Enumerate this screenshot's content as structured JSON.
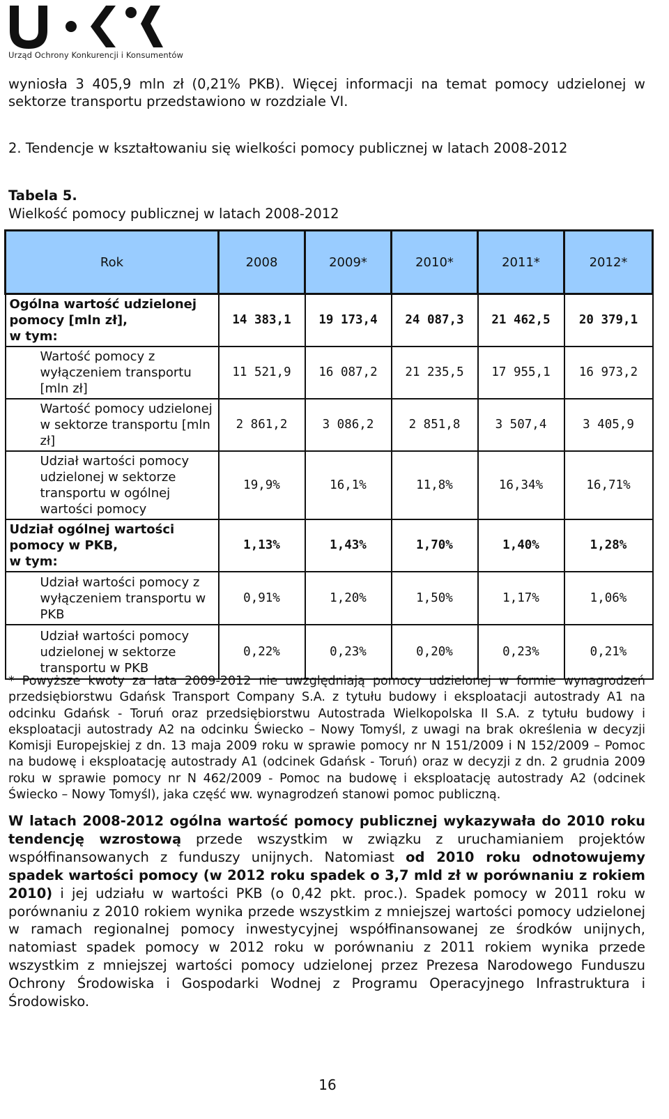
{
  "logo": {
    "letters": "U•K",
    "tagline": "Urząd Ochrony Konkurencji i Konsumentów"
  },
  "intro": "wyniosła 3 405,9 mln zł (0,21% PKB). Więcej informacji na temat pomocy udzielonej w sektorze transportu przedstawiono w rozdziale VI.",
  "section_heading": "2. Tendencje w kształtowaniu się wielkości pomocy publicznej w latach 2008-2012",
  "table": {
    "label": "Tabela 5.",
    "title": "Wielkość pomocy publicznej w latach 2008-2012",
    "header_colour": "#99ccff",
    "columns": [
      "Rok",
      "2008",
      "2009*",
      "2010*",
      "2011*",
      "2012*"
    ],
    "rows": [
      {
        "label": "Ogólna wartość udzielonej pomocy [mln zł],",
        "label2": "w tym:",
        "values": [
          "14 383,1",
          "19 173,4",
          "24 087,3",
          "21 462,5",
          "20 379,1"
        ]
      },
      {
        "label": "Wartość pomocy z wyłączeniem transportu [mln zł]",
        "values": [
          "11 521,9",
          "16 087,2",
          "21 235,5",
          "17 955,1",
          "16 973,2"
        ]
      },
      {
        "label": "Wartość pomocy udzielonej w sektorze transportu [mln zł]",
        "values": [
          "2 861,2",
          "3 086,2",
          "2 851,8",
          "3 507,4",
          "3 405,9"
        ]
      },
      {
        "label": "Udział wartości pomocy udzielonej w sektorze transportu w ogólnej wartości pomocy",
        "values": [
          "19,9%",
          "16,1%",
          "11,8%",
          "16,34%",
          "16,71%"
        ]
      },
      {
        "label": "Udział ogólnej wartości pomocy w PKB,",
        "label2": "w tym:",
        "values": [
          "1,13%",
          "1,43%",
          "1,70%",
          "1,40%",
          "1,28%"
        ]
      },
      {
        "label": "Udział wartości pomocy z wyłączeniem transportu w PKB",
        "values": [
          "0,91%",
          "1,20%",
          "1,50%",
          "1,17%",
          "1,06%"
        ]
      },
      {
        "label": "Udział wartości pomocy udzielonej w sektorze transportu w PKB",
        "values": [
          "0,22%",
          "0,23%",
          "0,20%",
          "0,23%",
          "0,21%"
        ]
      }
    ]
  },
  "footnote": "* Powyższe kwoty za lata 2009-2012 nie uwzględniają pomocy udzielonej w formie wynagrodzeń przedsiębiorstwu Gdańsk Transport Company S.A. z tytułu budowy i eksploatacji autostrady A1 na odcinku Gdańsk - Toruń oraz przedsiębiorstwu Autostrada Wielkopolska II S.A. z tytułu budowy i eksploatacji autostrady A2 na odcinku Świecko – Nowy Tomyśl, z uwagi na brak określenia w decyzji Komisji Europejskiej z dn. 13 maja 2009 roku w sprawie pomocy nr N 151/2009 i N 152/2009 – Pomoc na budowę i eksploatację autostrady A1 (odcinek Gdańsk - Toruń) oraz w decyzji z dn. 2 grudnia 2009 roku w sprawie pomocy nr N 462/2009 - Pomoc na budowę i eksploatację autostrady A2 (odcinek Świecko – Nowy Tomyśl), jaka część ww. wynagrodzeń stanowi pomoc publiczną.",
  "body": {
    "b1": "W latach 2008-2012 ogólna wartość pomocy publicznej wykazywała do 2010 roku tendencję wzrostową",
    "t1": " przede wszystkim w związku z uruchamianiem projektów współfinansowanych z funduszy unijnych. Natomiast ",
    "b2": "od 2010 roku odnotowujemy spadek wartości pomocy (w 2012 roku spadek o 3,7 mld zł w porównaniu z rokiem 2010)",
    "t2": " i jej udziału w wartości PKB (o 0,42 pkt. proc.). Spadek pomocy w 2011 roku w porównaniu z 2010 rokiem wynika przede wszystkim z mniejszej wartości pomocy udzielonej w ramach regionalnej pomocy inwestycyjnej współfinansowanej ze środków unijnych, natomiast spadek pomocy w 2012 roku w porównaniu z 2011 rokiem wynika przede wszystkim z mniejszej wartości pomocy udzielonej przez Prezesa Narodowego Funduszu Ochrony Środowiska i Gospodarki Wodnej z Programu Operacyjnego Infrastruktura i Środowisko."
  },
  "page_number": "16"
}
